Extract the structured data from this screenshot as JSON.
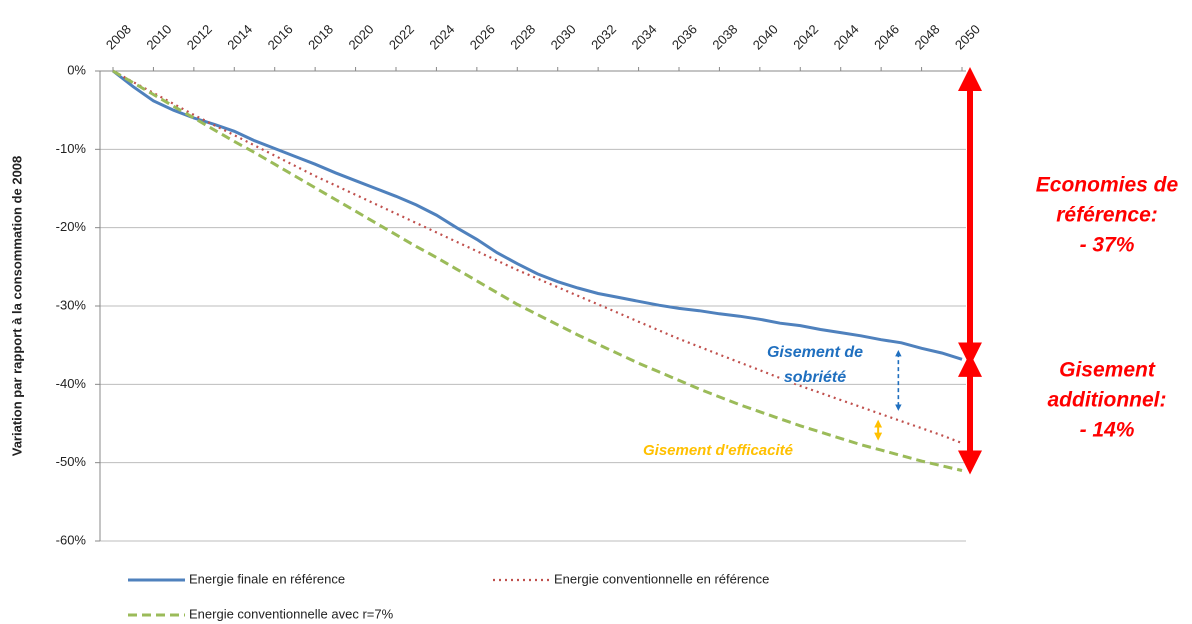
{
  "chart_data": {
    "type": "line",
    "y_label": "Variation par rapport à la consommation de 2008",
    "x": [
      2008,
      2009,
      2010,
      2011,
      2012,
      2013,
      2014,
      2015,
      2016,
      2017,
      2018,
      2019,
      2020,
      2021,
      2022,
      2023,
      2024,
      2025,
      2026,
      2027,
      2028,
      2029,
      2030,
      2031,
      2032,
      2033,
      2034,
      2035,
      2036,
      2037,
      2038,
      2039,
      2040,
      2041,
      2042,
      2043,
      2044,
      2045,
      2046,
      2047,
      2048,
      2049,
      2050
    ],
    "xlim": [
      2008,
      2050
    ],
    "xticks": [
      2008,
      2010,
      2012,
      2014,
      2016,
      2018,
      2020,
      2022,
      2024,
      2026,
      2028,
      2030,
      2032,
      2034,
      2036,
      2038,
      2040,
      2042,
      2044,
      2046,
      2048,
      2050
    ],
    "ylim": [
      -60,
      0
    ],
    "yticks": [
      {
        "value": 0,
        "label": "0%"
      },
      {
        "value": -10,
        "label": "-10%"
      },
      {
        "value": -20,
        "label": "-20%"
      },
      {
        "value": -30,
        "label": "-30%"
      },
      {
        "value": -40,
        "label": "-40%"
      },
      {
        "value": -50,
        "label": "-50%"
      },
      {
        "value": -60,
        "label": "-60%"
      }
    ],
    "grid": true,
    "legend": "bottom",
    "series": [
      {
        "name": "Energie finale en référence",
        "color": "#4f81bd",
        "style": "solid",
        "values": [
          0,
          -2,
          -3.8,
          -5,
          -6,
          -6.8,
          -7.7,
          -8.9,
          -9.9,
          -10.9,
          -11.9,
          -13,
          -14,
          -15,
          -16,
          -17.1,
          -18.4,
          -20,
          -21.5,
          -23.2,
          -24.6,
          -25.9,
          -26.9,
          -27.7,
          -28.4,
          -28.9,
          -29.4,
          -29.9,
          -30.3,
          -30.6,
          -31,
          -31.3,
          -31.7,
          -32.2,
          -32.5,
          -33,
          -33.4,
          -33.8,
          -34.3,
          -34.7,
          -35.4,
          -36,
          -36.8
        ]
      },
      {
        "name": "Energie conventionnelle en référence",
        "color": "#c0504d",
        "style": "dotted",
        "values": [
          0,
          -1.4,
          -2.8,
          -4.2,
          -5.6,
          -6.9,
          -8.2,
          -9.5,
          -10.8,
          -12.1,
          -13.4,
          -14.6,
          -15.8,
          -17,
          -18.2,
          -19.4,
          -20.6,
          -21.8,
          -23,
          -24.2,
          -25.4,
          -26.5,
          -27.6,
          -28.7,
          -29.8,
          -30.9,
          -32,
          -33.1,
          -34.2,
          -35.2,
          -36.2,
          -37.2,
          -38.2,
          -39.2,
          -40.2,
          -41.1,
          -42,
          -42.9,
          -43.8,
          -44.7,
          -45.6,
          -46.5,
          -47.5
        ]
      },
      {
        "name": "Energie conventionnelle avec r=7%",
        "color": "#9bbb59",
        "style": "dashed",
        "values": [
          0,
          -1.5,
          -3,
          -4.5,
          -6,
          -7.5,
          -9,
          -10.4,
          -11.9,
          -13.4,
          -14.9,
          -16.4,
          -17.9,
          -19.4,
          -20.9,
          -22.4,
          -23.8,
          -25.3,
          -26.8,
          -28.3,
          -29.8,
          -31.1,
          -32.4,
          -33.7,
          -34.9,
          -36.1,
          -37.3,
          -38.4,
          -39.5,
          -40.6,
          -41.6,
          -42.6,
          -43.5,
          -44.4,
          -45.3,
          -46.1,
          -46.9,
          -47.7,
          -48.4,
          -49.1,
          -49.8,
          -50.4,
          -51
        ]
      }
    ],
    "annotations": {
      "reference": [
        "Economies de",
        "référence:",
        "- 37%"
      ],
      "additional": [
        "Gisement",
        "additionnel:",
        "- 14%"
      ],
      "sobriety": [
        "Gisement de",
        "sobriété"
      ],
      "efficiency": "Gisement d'efficacité"
    }
  }
}
